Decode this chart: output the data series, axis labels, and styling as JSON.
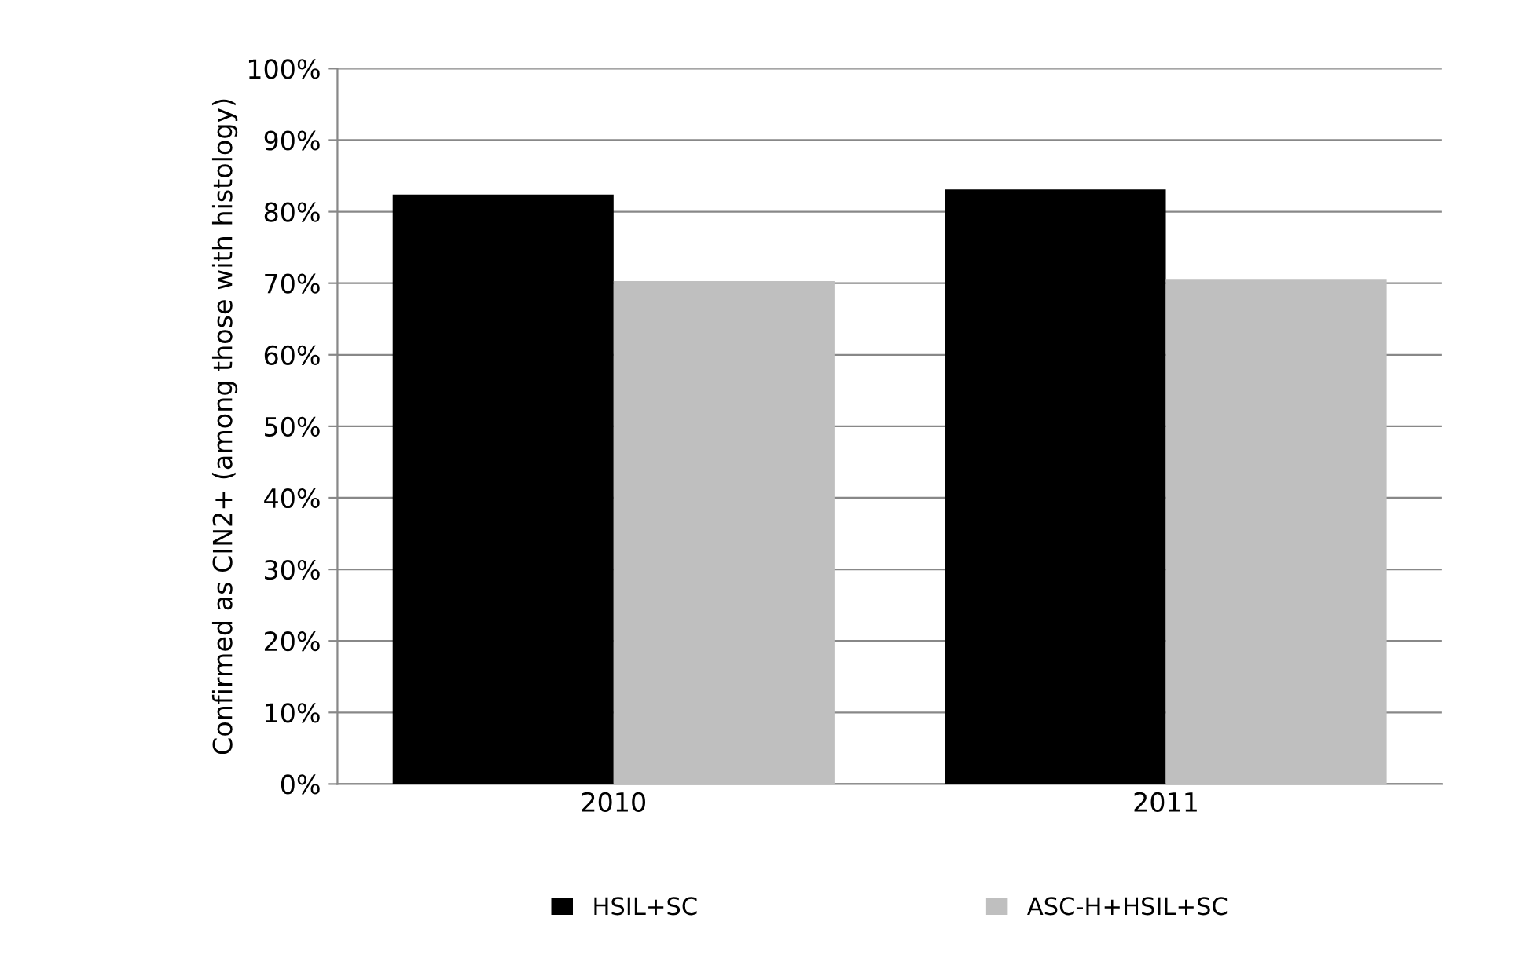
{
  "chart_data": {
    "type": "bar",
    "ylabel": "Confirmed as CIN2+ (among those with histology)",
    "categories": [
      "2010",
      "2011"
    ],
    "series": [
      {
        "name": "HSIL+SC",
        "color": "#000000",
        "values": [
          82.4,
          83.1
        ]
      },
      {
        "name": "ASC-H+HSIL+SC",
        "color": "#bfbfbf",
        "values": [
          70.3,
          70.6
        ]
      }
    ],
    "ylim": [
      0,
      100
    ],
    "yticks": [
      {
        "value": 0,
        "label": "0%"
      },
      {
        "value": 10,
        "label": "10%"
      },
      {
        "value": 20,
        "label": "20%"
      },
      {
        "value": 30,
        "label": "30%"
      },
      {
        "value": 40,
        "label": "40%"
      },
      {
        "value": 50,
        "label": "50%"
      },
      {
        "value": 60,
        "label": "60%"
      },
      {
        "value": 70,
        "label": "70%"
      },
      {
        "value": 80,
        "label": "80%"
      },
      {
        "value": 90,
        "label": "90%"
      },
      {
        "value": 100,
        "label": "100%"
      }
    ],
    "grid": "y",
    "legend": "bottom"
  }
}
